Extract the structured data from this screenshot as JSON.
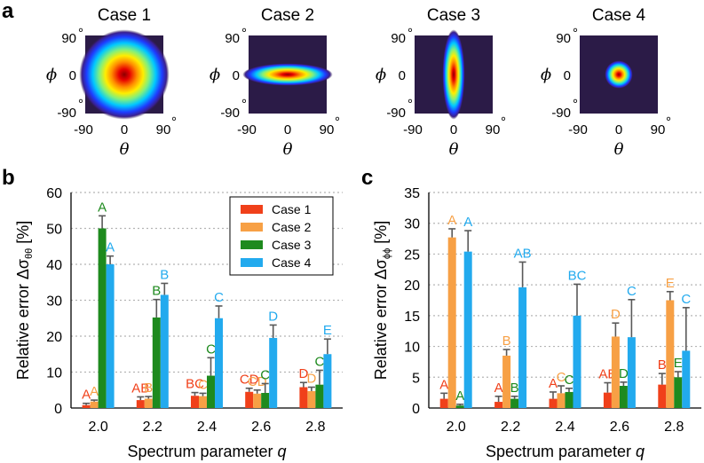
{
  "panel_labels": {
    "a": "a",
    "b": "b",
    "c": "c"
  },
  "colors": {
    "case1": "#f0401a",
    "case2": "#f7a045",
    "case3": "#1e8a1e",
    "case4": "#22aaee",
    "error_bar": "#595959",
    "grid": "#b5b5b5",
    "heatmap_bg": "#2b1b47"
  },
  "heatmaps": [
    {
      "title": "Case 1",
      "sx": 0.32,
      "sy": 0.32,
      "tick_labels": [
        "90",
        "0",
        "-90"
      ],
      "x_tick_labels": [
        "-90",
        "0",
        "90"
      ],
      "degree": "°",
      "ylabel": "ϕ",
      "xlabel": "θ"
    },
    {
      "title": "Case 2",
      "sx": 0.32,
      "sy": 0.08,
      "tick_labels": [
        "90",
        "0",
        "-90"
      ],
      "x_tick_labels": [
        "-90",
        "0",
        "90"
      ],
      "degree": "°",
      "ylabel": "ϕ",
      "xlabel": "θ"
    },
    {
      "title": "Case 3",
      "sx": 0.08,
      "sy": 0.32,
      "tick_labels": [
        "90",
        "0",
        "-90"
      ],
      "x_tick_labels": [
        "-90",
        "0",
        "90"
      ],
      "degree": "°",
      "ylabel": "ϕ",
      "xlabel": "θ"
    },
    {
      "title": "Case 4",
      "sx": 0.1,
      "sy": 0.1,
      "tick_labels": [
        "90",
        "0",
        "-90"
      ],
      "x_tick_labels": [
        "-90",
        "0",
        "90"
      ],
      "degree": "°",
      "ylabel": "ϕ",
      "xlabel": "θ"
    }
  ],
  "legend": [
    "Case 1",
    "Case 2",
    "Case 3",
    "Case 4"
  ],
  "chart_data": [
    {
      "type": "bar",
      "panel": "b",
      "title": "",
      "xlabel_text": "Spectrum parameter ",
      "xlabel_var": "q",
      "ylabel_text": "Relative error Δσ",
      "ylabel_sub": "θθ",
      "ylabel_unit": " [%]",
      "categories": [
        "2.0",
        "2.2",
        "2.4",
        "2.6",
        "2.8"
      ],
      "ylim": [
        0,
        60
      ],
      "yticks": [
        "0",
        "10",
        "20",
        "30",
        "40",
        "50",
        "60"
      ],
      "grid": "horizontal dotted",
      "legend_position": "top-right",
      "series": [
        {
          "name": "Case 1",
          "values": [
            0.8,
            2.2,
            3.4,
            4.5,
            5.8
          ],
          "errors": [
            0.5,
            0.9,
            0.9,
            1.0,
            1.3
          ],
          "labels": [
            "A",
            "AB",
            "BC",
            "CD",
            "D"
          ]
        },
        {
          "name": "Case 2",
          "values": [
            1.8,
            2.6,
            3.3,
            4.0,
            4.7
          ],
          "errors": [
            0.4,
            0.6,
            0.8,
            1.0,
            1.1
          ],
          "labels": [
            "A",
            "B",
            "C",
            "CD",
            "D"
          ]
        },
        {
          "name": "Case 3",
          "values": [
            50.0,
            25.2,
            9.0,
            4.2,
            6.5
          ],
          "errors": [
            3.5,
            5.0,
            5.0,
            2.6,
            4.0
          ],
          "labels": [
            "A",
            "B",
            "C",
            "C",
            "C"
          ]
        },
        {
          "name": "Case 4",
          "values": [
            40.0,
            31.5,
            25.0,
            19.5,
            15.0
          ],
          "errors": [
            2.3,
            3.2,
            3.4,
            3.6,
            4.2
          ],
          "labels": [
            "A",
            "B",
            "C",
            "D",
            "E"
          ]
        }
      ]
    },
    {
      "type": "bar",
      "panel": "c",
      "title": "",
      "xlabel_text": "Spectrum parameter ",
      "xlabel_var": "q",
      "ylabel_text": "Relative error Δσ",
      "ylabel_sub": "ϕϕ",
      "ylabel_unit": " [%]",
      "categories": [
        "2.0",
        "2.2",
        "2.4",
        "2.6",
        "2.8"
      ],
      "ylim": [
        0,
        35
      ],
      "yticks": [
        "0",
        "5",
        "10",
        "15",
        "20",
        "25",
        "30",
        "35"
      ],
      "grid": "horizontal dotted",
      "legend_position": "none",
      "series": [
        {
          "name": "Case 1",
          "values": [
            1.5,
            1.0,
            1.5,
            2.5,
            3.8
          ],
          "errors": [
            0.9,
            0.9,
            1.1,
            1.6,
            1.8
          ],
          "labels": [
            "A",
            "A",
            "A",
            "AB",
            "B"
          ]
        },
        {
          "name": "Case 2",
          "values": [
            27.7,
            8.5,
            2.4,
            11.6,
            17.5
          ],
          "errors": [
            1.4,
            1.0,
            1.2,
            2.2,
            1.4
          ],
          "labels": [
            "A",
            "B",
            "C",
            "D",
            "E"
          ]
        },
        {
          "name": "Case 3",
          "values": [
            0.4,
            1.5,
            2.6,
            3.6,
            5.0
          ],
          "errors": [
            0.2,
            0.4,
            0.6,
            0.6,
            0.9
          ],
          "labels": [
            "A",
            "B",
            "C",
            "D",
            "E"
          ]
        },
        {
          "name": "Case 4",
          "values": [
            25.4,
            19.6,
            15.0,
            11.5,
            9.3
          ],
          "errors": [
            3.4,
            4.1,
            5.1,
            6.1,
            7.0
          ],
          "labels": [
            "A",
            "AB",
            "BC",
            "C",
            "C"
          ]
        }
      ]
    }
  ]
}
